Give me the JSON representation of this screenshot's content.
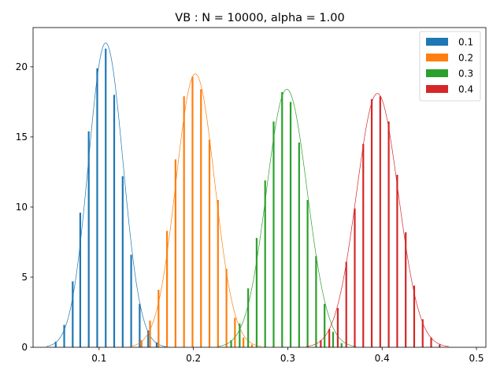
{
  "chart_data": {
    "type": "bar",
    "title": "VB : N = 10000, alpha = 1.00",
    "xlabel": "",
    "ylabel": "",
    "xlim": [
      0.03,
      0.51
    ],
    "ylim": [
      0,
      22.8
    ],
    "x_ticks": [
      0.1,
      0.2,
      0.3,
      0.4,
      0.5
    ],
    "x_tick_labels": [
      "0.1",
      "0.2",
      "0.3",
      "0.4",
      "0.5"
    ],
    "y_ticks": [
      0,
      5,
      10,
      15,
      20
    ],
    "y_tick_labels": [
      "0",
      "5",
      "10",
      "15",
      "20"
    ],
    "grid": false,
    "legend_position": "top-right",
    "series": [
      {
        "name": "0.1",
        "color": "#1f77b4",
        "bar_x": [
          0.045,
          0.054,
          0.063,
          0.072,
          0.08,
          0.089,
          0.098,
          0.107,
          0.116,
          0.125,
          0.134,
          0.143,
          0.152,
          0.161,
          0.17
        ],
        "bar_heights": [
          0.03,
          0.4,
          1.6,
          4.7,
          9.6,
          15.4,
          19.9,
          21.3,
          18.0,
          12.2,
          6.6,
          3.1,
          1.2,
          0.35,
          0.06
        ],
        "curve_mean": 0.107,
        "curve_peak": 21.7,
        "curve_sd": 0.0184
      },
      {
        "name": "0.2",
        "color": "#ff7f0e",
        "bar_x": [
          0.145,
          0.154,
          0.163,
          0.172,
          0.181,
          0.19,
          0.199,
          0.208,
          0.217,
          0.226,
          0.235,
          0.244,
          0.253,
          0.262
        ],
        "bar_heights": [
          0.5,
          1.9,
          4.1,
          8.3,
          13.4,
          17.9,
          19.3,
          18.4,
          14.8,
          10.5,
          5.6,
          2.1,
          0.7,
          0.2
        ],
        "curve_mean": 0.202,
        "curve_peak": 19.5,
        "curve_sd": 0.0205
      },
      {
        "name": "0.3",
        "color": "#2ca02c",
        "bar_x": [
          0.24,
          0.249,
          0.258,
          0.267,
          0.276,
          0.285,
          0.294,
          0.303,
          0.312,
          0.321,
          0.33,
          0.339,
          0.348,
          0.357
        ],
        "bar_heights": [
          0.5,
          1.7,
          4.2,
          7.8,
          11.9,
          16.1,
          18.2,
          17.5,
          14.6,
          10.5,
          6.5,
          3.1,
          1.1,
          0.3
        ],
        "curve_mean": 0.299,
        "curve_peak": 18.4,
        "curve_sd": 0.0216
      },
      {
        "name": "0.4",
        "color": "#d62728",
        "bar_x": [
          0.335,
          0.344,
          0.353,
          0.362,
          0.371,
          0.38,
          0.389,
          0.398,
          0.407,
          0.416,
          0.425,
          0.434,
          0.443,
          0.452,
          0.461
        ],
        "bar_heights": [
          0.5,
          1.3,
          2.8,
          6.1,
          9.9,
          14.5,
          17.7,
          17.9,
          16.1,
          12.3,
          8.2,
          4.4,
          2.0,
          0.7,
          0.2
        ],
        "curve_mean": 0.395,
        "curve_peak": 18.1,
        "curve_sd": 0.0222
      }
    ]
  }
}
